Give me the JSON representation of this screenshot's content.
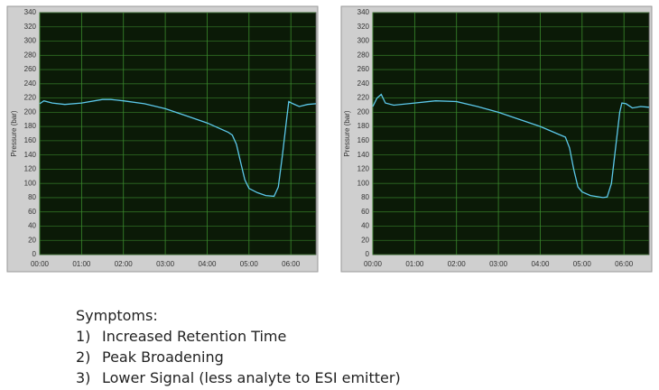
{
  "chart_data": [
    {
      "type": "line",
      "ylabel": "Pressure (bar)",
      "x": [
        0,
        0.1,
        0.3,
        0.6,
        1.0,
        1.5,
        1.7,
        2.0,
        2.5,
        3.0,
        3.5,
        4.0,
        4.5,
        4.6,
        4.7,
        4.8,
        4.9,
        5.0,
        5.2,
        5.4,
        5.6,
        5.7,
        5.8,
        5.9,
        5.95,
        6.05,
        6.2,
        6.4,
        6.6
      ],
      "series": [
        {
          "color": "#5cc8ea",
          "values": [
            212,
            216,
            213,
            211,
            213,
            218,
            218,
            216,
            212,
            205,
            195,
            185,
            172,
            168,
            155,
            130,
            105,
            93,
            87,
            83,
            82,
            95,
            140,
            190,
            215,
            212,
            208,
            211,
            212
          ]
        }
      ],
      "xlim": [
        0,
        6.6
      ],
      "ylim": [
        0,
        340
      ],
      "xticks": [
        {
          "value": 0,
          "label": "00:00"
        },
        {
          "value": 1,
          "label": "01:00"
        },
        {
          "value": 2,
          "label": "02:00"
        },
        {
          "value": 3,
          "label": "03:00"
        },
        {
          "value": 4,
          "label": "04:00"
        },
        {
          "value": 5,
          "label": "05:00"
        },
        {
          "value": 6,
          "label": "06:00"
        }
      ],
      "yticks": [
        0,
        20,
        40,
        60,
        80,
        100,
        120,
        140,
        160,
        180,
        200,
        220,
        240,
        260,
        280,
        300,
        320,
        340
      ],
      "grid": true
    },
    {
      "type": "line",
      "ylabel": "Pressure (bar)",
      "x": [
        0,
        0.1,
        0.2,
        0.3,
        0.5,
        1.0,
        1.5,
        2.0,
        2.5,
        3.0,
        3.5,
        4.0,
        4.4,
        4.6,
        4.7,
        4.8,
        4.9,
        5.0,
        5.2,
        5.5,
        5.6,
        5.7,
        5.8,
        5.9,
        5.95,
        6.05,
        6.2,
        6.4,
        6.6
      ],
      "series": [
        {
          "color": "#5cc8ea",
          "values": [
            208,
            220,
            225,
            213,
            210,
            213,
            216,
            215,
            208,
            200,
            190,
            180,
            170,
            165,
            150,
            120,
            95,
            88,
            83,
            80,
            81,
            100,
            150,
            200,
            213,
            212,
            206,
            208,
            207
          ]
        }
      ],
      "xlim": [
        0,
        6.6
      ],
      "ylim": [
        0,
        340
      ],
      "xticks": [
        {
          "value": 0,
          "label": "00:00"
        },
        {
          "value": 1,
          "label": "01:00"
        },
        {
          "value": 2,
          "label": "02:00"
        },
        {
          "value": 3,
          "label": "03:00"
        },
        {
          "value": 4,
          "label": "04:00"
        },
        {
          "value": 5,
          "label": "05:00"
        },
        {
          "value": 6,
          "label": "06:00"
        }
      ],
      "yticks": [
        0,
        20,
        40,
        60,
        80,
        100,
        120,
        140,
        160,
        180,
        200,
        220,
        240,
        260,
        280,
        300,
        320,
        340
      ],
      "grid": true
    }
  ],
  "notes": {
    "heading": "Symptoms:",
    "items": [
      {
        "number": "1)",
        "text": "Increased Retention Time"
      },
      {
        "number": "2)",
        "text": "Peak Broadening"
      },
      {
        "number": "3)",
        "text": "Lower Signal (less analyte to ESI emitter)"
      }
    ]
  }
}
